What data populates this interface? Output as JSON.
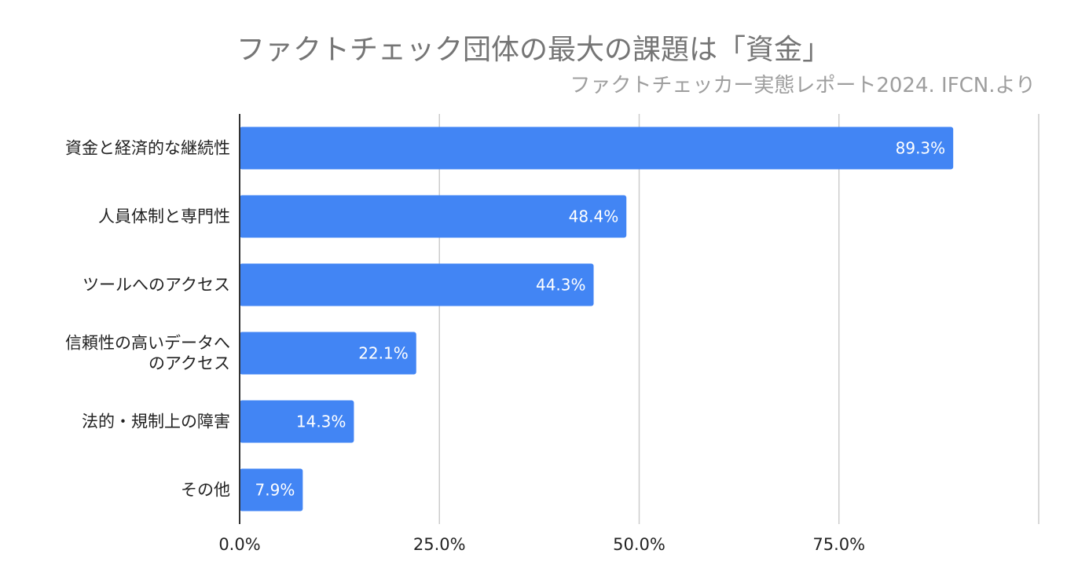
{
  "chart_data": {
    "type": "bar",
    "orientation": "horizontal",
    "title": "ファクトチェック団体の最大の課題は「資金」",
    "subtitle": "ファクトチェッカー実態レポート2024. IFCN.より",
    "categories": [
      [
        "資金と経済的な継続性"
      ],
      [
        "人員体制と専門性"
      ],
      [
        "ツールへのアクセス"
      ],
      [
        "信頼性の高いデータへ",
        "のアクセス"
      ],
      [
        "法的・規制上の障害"
      ],
      [
        "その他"
      ]
    ],
    "values": [
      89.3,
      48.4,
      44.3,
      22.1,
      14.3,
      7.9
    ],
    "data_labels": [
      "89.3%",
      "48.4%",
      "44.3%",
      "22.1%",
      "14.3%",
      "7.9%"
    ],
    "x_ticks": [
      0,
      25,
      50,
      75
    ],
    "x_tick_labels": [
      "0.0%",
      "25.0%",
      "50.0%",
      "75.0%"
    ],
    "xlim": [
      0,
      100
    ],
    "xlabel": "",
    "ylabel": "",
    "grid": true,
    "legend": "none",
    "colors": {
      "bar": "#4285f4",
      "grid": "#cccccc",
      "axis": "#333333",
      "title": "#757575",
      "subtitle": "#9e9e9e"
    }
  }
}
